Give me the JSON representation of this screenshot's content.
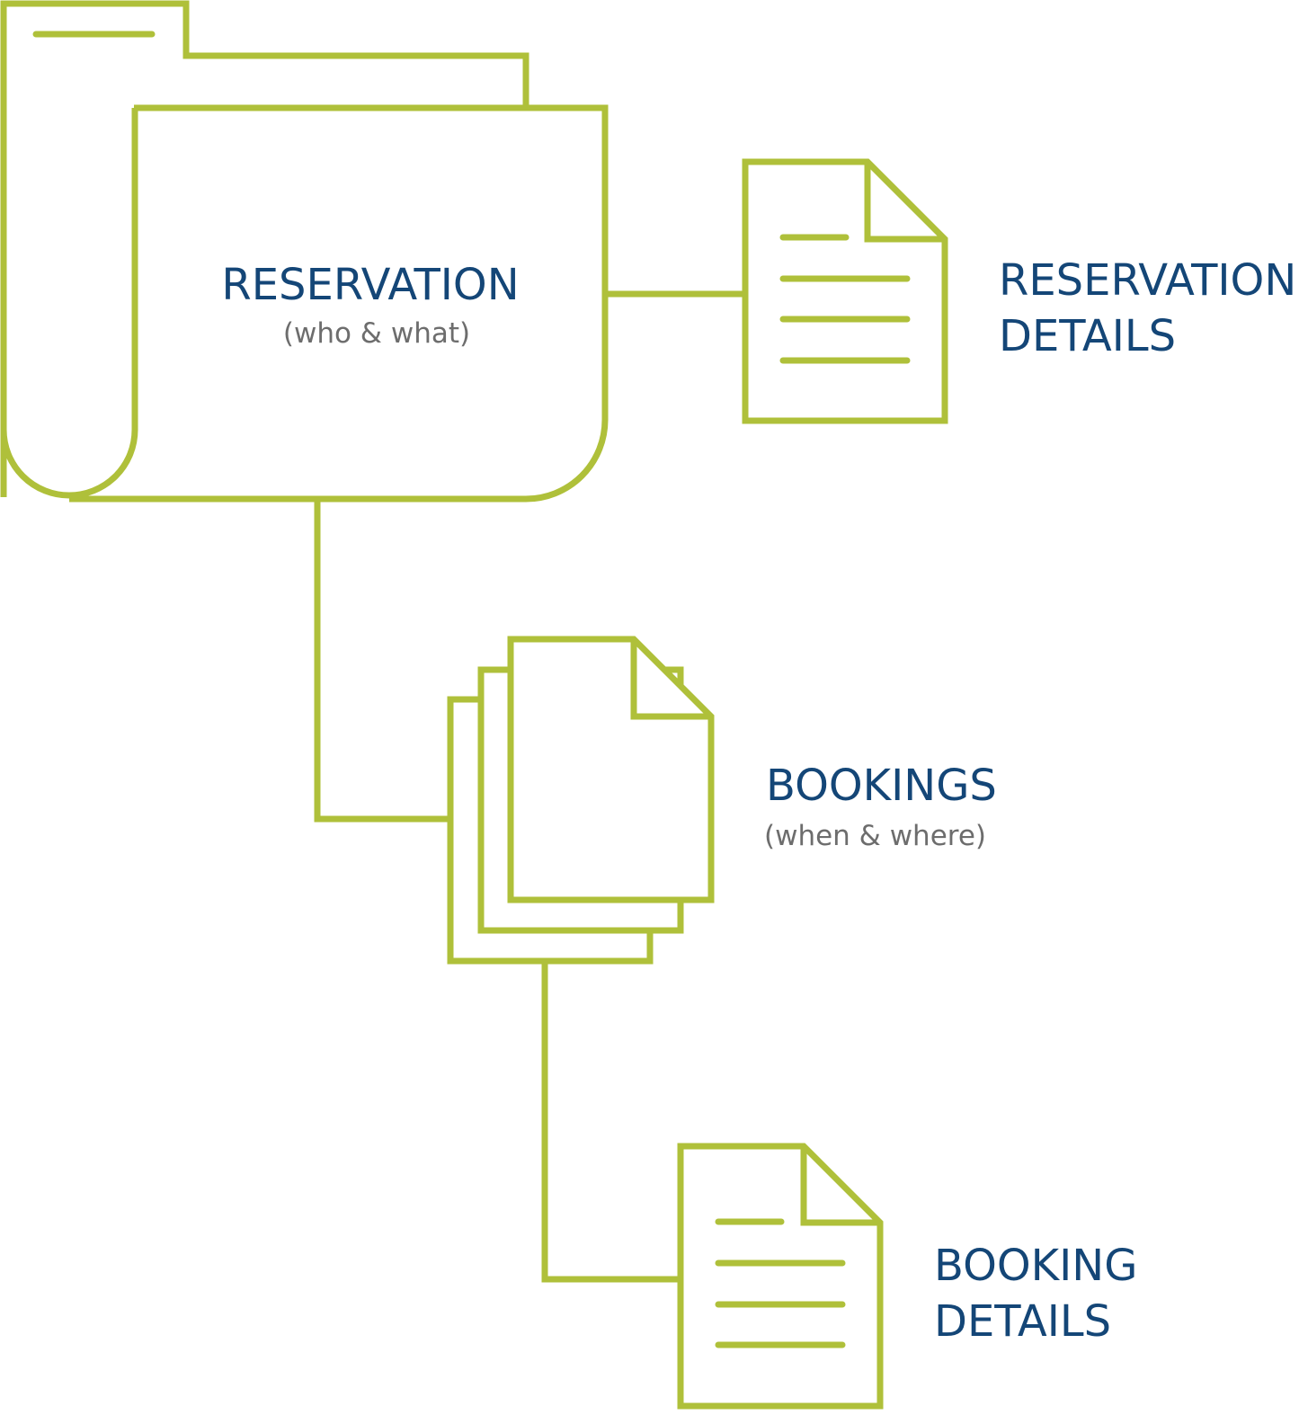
{
  "colors": {
    "stroke": "#afc03a",
    "title": "#144677",
    "subtitle": "#6d6d6d",
    "background": "#ffffff"
  },
  "reservation": {
    "title": "RESERVATION",
    "subtitle": "(who & what)"
  },
  "reservation_details": {
    "line1": "RESERVATION",
    "line2": "DETAILS"
  },
  "bookings": {
    "title": "BOOKINGS",
    "subtitle": "(when & where)"
  },
  "booking_details": {
    "line1": "BOOKING",
    "line2": "DETAILS"
  }
}
